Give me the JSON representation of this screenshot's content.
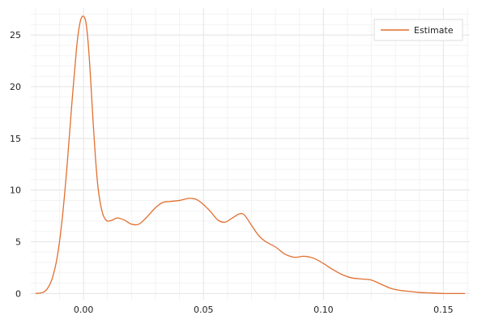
{
  "chart_data": {
    "type": "line",
    "title": "",
    "xlabel": "",
    "ylabel": "",
    "xlim": [
      -0.022,
      0.161
    ],
    "ylim": [
      -0.6,
      27.6
    ],
    "xticks": [
      0.0,
      0.05,
      0.1,
      0.15
    ],
    "xtick_labels": [
      "0.00",
      "0.05",
      "0.10",
      "0.15"
    ],
    "yticks": [
      0,
      5,
      10,
      15,
      20,
      25
    ],
    "ytick_labels": [
      "0",
      "5",
      "10",
      "15",
      "20",
      "25"
    ],
    "grid": true,
    "legend": {
      "position": "top-right",
      "entries": [
        "Estimate"
      ]
    },
    "series": [
      {
        "name": "Estimate",
        "color": "#e26f2f",
        "x": [
          -0.02,
          -0.017,
          -0.015,
          -0.013,
          -0.011,
          -0.009,
          -0.007,
          -0.005,
          -0.003,
          -0.002,
          -0.001,
          0.0,
          0.001,
          0.002,
          0.003,
          0.004,
          0.005,
          0.006,
          0.007,
          0.008,
          0.009,
          0.01,
          0.012,
          0.014,
          0.017,
          0.02,
          0.023,
          0.026,
          0.03,
          0.033,
          0.036,
          0.04,
          0.044,
          0.047,
          0.05,
          0.053,
          0.056,
          0.059,
          0.062,
          0.065,
          0.067,
          0.07,
          0.073,
          0.076,
          0.08,
          0.084,
          0.088,
          0.092,
          0.096,
          0.1,
          0.104,
          0.108,
          0.112,
          0.116,
          0.12,
          0.124,
          0.128,
          0.132,
          0.136,
          0.14,
          0.145,
          0.15,
          0.155,
          0.159
        ],
        "y": [
          0.0,
          0.1,
          0.5,
          1.5,
          3.5,
          7.0,
          12.0,
          18.0,
          23.5,
          25.5,
          26.6,
          26.8,
          26.2,
          24.0,
          20.5,
          16.5,
          13.0,
          10.3,
          8.7,
          7.7,
          7.2,
          7.0,
          7.1,
          7.3,
          7.1,
          6.7,
          6.7,
          7.3,
          8.3,
          8.8,
          8.9,
          9.0,
          9.2,
          9.1,
          8.6,
          7.9,
          7.1,
          6.9,
          7.3,
          7.7,
          7.6,
          6.6,
          5.6,
          5.0,
          4.5,
          3.8,
          3.5,
          3.6,
          3.4,
          2.9,
          2.3,
          1.8,
          1.5,
          1.4,
          1.3,
          0.9,
          0.5,
          0.3,
          0.2,
          0.1,
          0.05,
          0.0,
          0.0,
          0.0
        ]
      }
    ]
  }
}
